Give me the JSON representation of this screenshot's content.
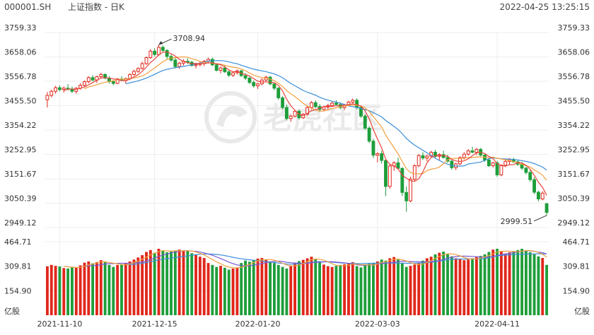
{
  "header": {
    "symbol": "000001.SH",
    "name": "上证指数 - 日K",
    "timestamp": "2022-04-25 13:25:15"
  },
  "watermark": {
    "text": "老虎社区"
  },
  "colors": {
    "up": "#e0271b",
    "down": "#1e9e3a",
    "ma5": "#e8453c",
    "ma10": "#f2a03d",
    "ma20": "#3a8fd9",
    "vol_ma5": "#f2a03d",
    "vol_ma10": "#7b5bd6",
    "vol_ma20": "#3a8fd9",
    "grid": "#eeeeee",
    "axis_text": "#333333"
  },
  "chart_data": [
    {
      "type": "candlestick",
      "name": "price",
      "yticks": [
        "3759.33",
        "3658.06",
        "3556.78",
        "3455.50",
        "3354.22",
        "3252.95",
        "3151.67",
        "3050.39",
        "2949.12"
      ],
      "ylim": [
        2949.12,
        3759.33
      ],
      "xticks": [
        "2021-11-10",
        "2021-12-15",
        "2022-01-20",
        "2022-03-03",
        "2022-04-11"
      ],
      "xtick_index": [
        3,
        26,
        51,
        80,
        109
      ],
      "annotations": [
        {
          "text": "3708.94",
          "index": 27,
          "value": 3708.94
        },
        {
          "text": "2999.51",
          "index": 121,
          "value": 2999.51
        }
      ],
      "candles": [
        [
          3480,
          3512,
          3448,
          3498
        ],
        [
          3498,
          3522,
          3490,
          3515
        ],
        [
          3515,
          3538,
          3505,
          3530
        ],
        [
          3530,
          3540,
          3515,
          3522
        ],
        [
          3522,
          3535,
          3510,
          3528
        ],
        [
          3528,
          3545,
          3518,
          3525
        ],
        [
          3525,
          3535,
          3508,
          3515
        ],
        [
          3515,
          3532,
          3505,
          3528
        ],
        [
          3528,
          3548,
          3522,
          3540
        ],
        [
          3540,
          3560,
          3535,
          3555
        ],
        [
          3555,
          3578,
          3548,
          3572
        ],
        [
          3572,
          3582,
          3556,
          3562
        ],
        [
          3562,
          3580,
          3550,
          3576
        ],
        [
          3576,
          3592,
          3570,
          3585
        ],
        [
          3585,
          3590,
          3565,
          3570
        ],
        [
          3570,
          3578,
          3548,
          3555
        ],
        [
          3555,
          3562,
          3540,
          3548
        ],
        [
          3548,
          3570,
          3545,
          3566
        ],
        [
          3566,
          3578,
          3558,
          3560
        ],
        [
          3560,
          3572,
          3548,
          3568
        ],
        [
          3568,
          3590,
          3562,
          3585
        ],
        [
          3585,
          3605,
          3580,
          3598
        ],
        [
          3598,
          3615,
          3592,
          3610
        ],
        [
          3610,
          3638,
          3605,
          3630
        ],
        [
          3630,
          3660,
          3625,
          3655
        ],
        [
          3655,
          3690,
          3650,
          3682
        ],
        [
          3682,
          3694,
          3660,
          3668
        ],
        [
          3668,
          3709,
          3662,
          3698
        ],
        [
          3698,
          3706,
          3676,
          3685
        ],
        [
          3685,
          3690,
          3650,
          3660
        ],
        [
          3660,
          3668,
          3638,
          3645
        ],
        [
          3645,
          3655,
          3610,
          3618
        ],
        [
          3618,
          3638,
          3608,
          3632
        ],
        [
          3632,
          3648,
          3622,
          3640
        ],
        [
          3640,
          3652,
          3628,
          3636
        ],
        [
          3636,
          3642,
          3618,
          3622
        ],
        [
          3622,
          3632,
          3610,
          3626
        ],
        [
          3626,
          3638,
          3618,
          3630
        ],
        [
          3630,
          3645,
          3620,
          3640
        ],
        [
          3640,
          3655,
          3632,
          3648
        ],
        [
          3648,
          3655,
          3620,
          3625
        ],
        [
          3625,
          3630,
          3598,
          3602
        ],
        [
          3602,
          3618,
          3590,
          3612
        ],
        [
          3612,
          3622,
          3592,
          3596
        ],
        [
          3596,
          3605,
          3575,
          3582
        ],
        [
          3582,
          3598,
          3575,
          3592
        ],
        [
          3592,
          3606,
          3585,
          3600
        ],
        [
          3600,
          3604,
          3575,
          3580
        ],
        [
          3580,
          3590,
          3562,
          3570
        ],
        [
          3570,
          3576,
          3545,
          3552
        ],
        [
          3552,
          3560,
          3530,
          3538
        ],
        [
          3538,
          3550,
          3525,
          3546
        ],
        [
          3546,
          3568,
          3540,
          3562
        ],
        [
          3562,
          3580,
          3555,
          3574
        ],
        [
          3574,
          3578,
          3540,
          3546
        ],
        [
          3546,
          3552,
          3520,
          3528
        ],
        [
          3528,
          3532,
          3480,
          3488
        ],
        [
          3488,
          3495,
          3440,
          3448
        ],
        [
          3448,
          3460,
          3395,
          3402
        ],
        [
          3402,
          3418,
          3388,
          3412
        ],
        [
          3412,
          3438,
          3406,
          3432
        ],
        [
          3432,
          3440,
          3398,
          3405
        ],
        [
          3405,
          3425,
          3400,
          3420
        ],
        [
          3420,
          3455,
          3415,
          3448
        ],
        [
          3448,
          3475,
          3440,
          3468
        ],
        [
          3468,
          3478,
          3445,
          3452
        ],
        [
          3452,
          3462,
          3430,
          3440
        ],
        [
          3440,
          3456,
          3432,
          3450
        ],
        [
          3450,
          3462,
          3440,
          3456
        ],
        [
          3456,
          3472,
          3450,
          3466
        ],
        [
          3466,
          3478,
          3455,
          3460
        ],
        [
          3460,
          3470,
          3440,
          3448
        ],
        [
          3448,
          3462,
          3438,
          3458
        ],
        [
          3458,
          3476,
          3452,
          3470
        ],
        [
          3470,
          3485,
          3462,
          3478
        ],
        [
          3478,
          3486,
          3440,
          3448
        ],
        [
          3448,
          3455,
          3405,
          3412
        ],
        [
          3412,
          3420,
          3355,
          3362
        ],
        [
          3362,
          3370,
          3300,
          3308
        ],
        [
          3308,
          3318,
          3238,
          3250
        ],
        [
          3250,
          3262,
          3220,
          3256
        ],
        [
          3256,
          3268,
          3215,
          3228
        ],
        [
          3228,
          3232,
          3080,
          3120
        ],
        [
          3120,
          3215,
          3110,
          3205
        ],
        [
          3205,
          3225,
          3185,
          3218
        ],
        [
          3218,
          3240,
          3190,
          3195
        ],
        [
          3195,
          3200,
          3080,
          3095
        ],
        [
          3095,
          3120,
          3015,
          3060
        ],
        [
          3060,
          3160,
          3055,
          3150
        ],
        [
          3150,
          3212,
          3140,
          3206
        ],
        [
          3206,
          3255,
          3200,
          3248
        ],
        [
          3248,
          3262,
          3230,
          3238
        ],
        [
          3238,
          3252,
          3224,
          3246
        ],
        [
          3246,
          3268,
          3240,
          3262
        ],
        [
          3262,
          3272,
          3238,
          3245
        ],
        [
          3245,
          3258,
          3230,
          3252
        ],
        [
          3252,
          3268,
          3236,
          3240
        ],
        [
          3240,
          3252,
          3218,
          3225
        ],
        [
          3225,
          3232,
          3190,
          3198
        ],
        [
          3198,
          3218,
          3188,
          3214
        ],
        [
          3214,
          3245,
          3208,
          3240
        ],
        [
          3240,
          3262,
          3232,
          3254
        ],
        [
          3254,
          3275,
          3248,
          3268
        ],
        [
          3268,
          3285,
          3258,
          3262
        ],
        [
          3262,
          3280,
          3250,
          3274
        ],
        [
          3274,
          3280,
          3245,
          3250
        ],
        [
          3250,
          3258,
          3222,
          3230
        ],
        [
          3230,
          3236,
          3200,
          3206
        ],
        [
          3206,
          3222,
          3198,
          3218
        ],
        [
          3218,
          3226,
          3160,
          3168
        ],
        [
          3168,
          3212,
          3162,
          3208
        ],
        [
          3208,
          3230,
          3200,
          3224
        ],
        [
          3224,
          3238,
          3212,
          3232
        ],
        [
          3232,
          3240,
          3218,
          3222
        ],
        [
          3222,
          3230,
          3205,
          3212
        ],
        [
          3212,
          3222,
          3188,
          3196
        ],
        [
          3196,
          3202,
          3170,
          3178
        ],
        [
          3178,
          3190,
          3140,
          3148
        ],
        [
          3148,
          3158,
          3088,
          3096
        ],
        [
          3096,
          3102,
          3058,
          3068
        ],
        [
          3068,
          3100,
          3062,
          3092
        ],
        [
          3048,
          3052,
          2999.51,
          3012
        ]
      ]
    },
    {
      "type": "bar",
      "name": "volume",
      "unit": "亿股",
      "yticks": [
        "464.71",
        "309.81",
        "154.90"
      ],
      "ylim": [
        0,
        464.71
      ],
      "values": [
        309,
        318,
        312,
        308,
        298,
        295,
        305,
        300,
        315,
        332,
        340,
        328,
        336,
        348,
        338,
        318,
        305,
        318,
        322,
        330,
        340,
        352,
        365,
        380,
        400,
        412,
        395,
        420,
        410,
        398,
        402,
        408,
        415,
        410,
        405,
        392,
        380,
        370,
        362,
        330,
        318,
        305,
        312,
        300,
        288,
        295,
        302,
        330,
        345,
        338,
        350,
        358,
        362,
        350,
        340,
        330,
        318,
        305,
        295,
        312,
        332,
        342,
        350,
        360,
        370,
        355,
        335,
        320,
        310,
        305,
        312,
        318,
        322,
        328,
        335,
        310,
        302,
        318,
        325,
        330,
        340,
        352,
        345,
        360,
        368,
        352,
        330,
        305,
        312,
        320,
        332,
        345,
        360,
        370,
        385,
        395,
        402,
        388,
        372,
        360,
        355,
        348,
        352,
        360,
        368,
        375,
        385,
        400,
        415,
        420,
        402,
        390,
        398,
        405,
        412,
        420,
        410,
        398,
        385,
        372,
        362,
        318
      ]
    }
  ]
}
